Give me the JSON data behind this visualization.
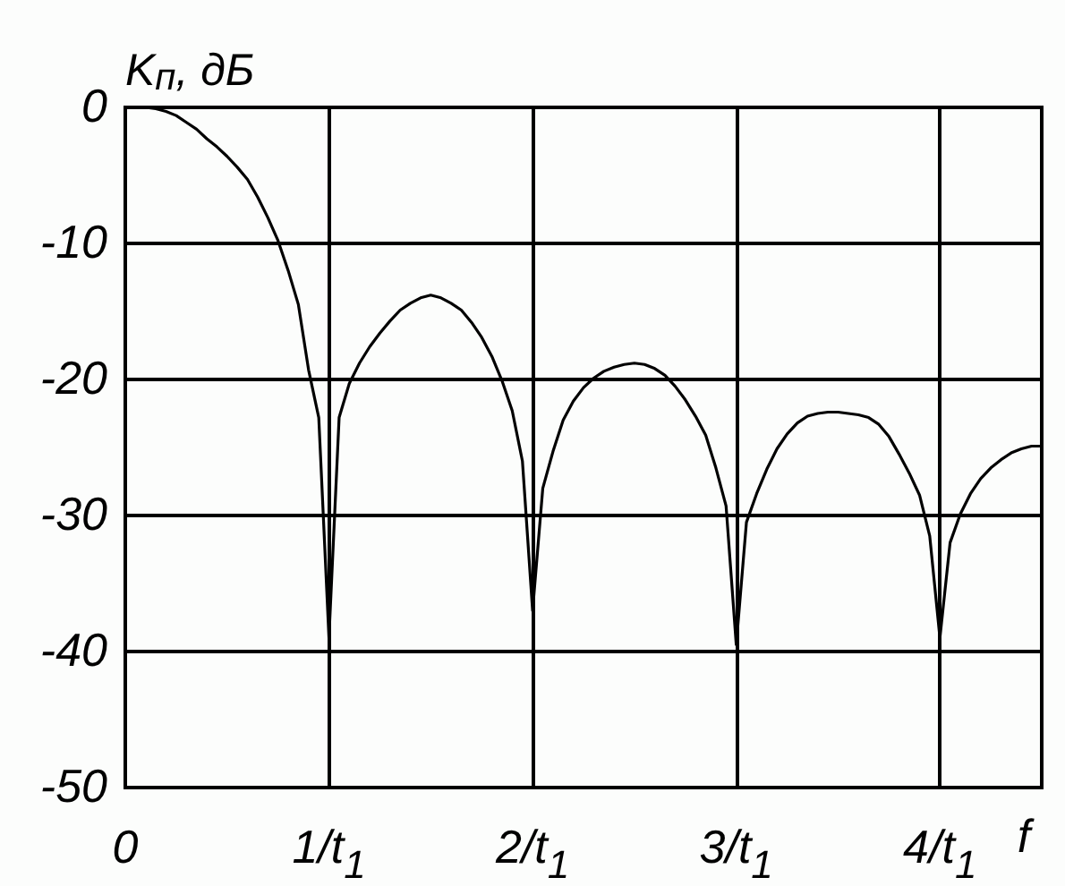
{
  "chart_data": {
    "type": "line",
    "xlabel": "f",
    "ylabel": "K$_{п}$, дБ",
    "categories": [
      "0",
      null,
      null,
      null,
      null,
      null,
      null,
      null,
      null,
      null,
      null,
      null,
      null,
      null,
      null,
      null,
      null,
      null,
      null,
      null,
      "1/t$_{1}$",
      null,
      null,
      null,
      null,
      null,
      null,
      null,
      null,
      null,
      null,
      null,
      null,
      null,
      null,
      null,
      null,
      null,
      null,
      null,
      "2/t$_{1}$",
      null,
      null,
      null,
      null,
      null,
      null,
      null,
      null,
      null,
      null,
      null,
      null,
      null,
      null,
      null,
      null,
      null,
      null,
      null,
      "3/t$_{1}$",
      null,
      null,
      null,
      null,
      null,
      null,
      null,
      null,
      null,
      null,
      null,
      null,
      null,
      null,
      null,
      null,
      null,
      null,
      null,
      "4/t$_{1}$",
      null,
      null,
      null,
      null,
      null,
      null,
      null,
      null,
      null,
      null
    ],
    "ylim": [
      -50,
      0
    ],
    "yticks": [
      -50,
      -40,
      -30,
      -20,
      -10,
      0
    ],
    "grid": true,
    "series": [
      {
        "color": "#000000",
        "values": [
          0,
          0,
          0,
          -0.1,
          -0.3,
          -0.6,
          -1.1,
          -1.6,
          -2.3,
          -2.9,
          -3.6,
          -4.4,
          -5.3,
          -6.6,
          -8.1,
          -9.8,
          -12.0,
          -14.5,
          -19.3,
          -22.8,
          -39,
          -22.8,
          -20.3,
          -18.8,
          -17.6,
          -16.6,
          -15.7,
          -14.9,
          -14.4,
          -14.0,
          -13.8,
          -14.0,
          -14.4,
          -14.9,
          -15.8,
          -16.9,
          -18.3,
          -20.1,
          -22.3,
          -26.0,
          -37,
          -28.0,
          -25.3,
          -23.0,
          -21.6,
          -20.6,
          -19.9,
          -19.4,
          -19.1,
          -18.9,
          -18.8,
          -18.9,
          -19.2,
          -19.7,
          -20.5,
          -21.5,
          -22.7,
          -24.1,
          -26.5,
          -29.3,
          -39.5,
          -30.5,
          -28.4,
          -26.6,
          -25.1,
          -24.0,
          -23.2,
          -22.7,
          -22.5,
          -22.4,
          -22.4,
          -22.5,
          -22.6,
          -22.8,
          -23.3,
          -24.2,
          -25.5,
          -26.9,
          -28.5,
          -31.5,
          -39,
          -32.0,
          -29.9,
          -28.4,
          -27.3,
          -26.5,
          -25.9,
          -25.4,
          -25.1,
          -24.9,
          -24.9
        ]
      }
    ]
  }
}
